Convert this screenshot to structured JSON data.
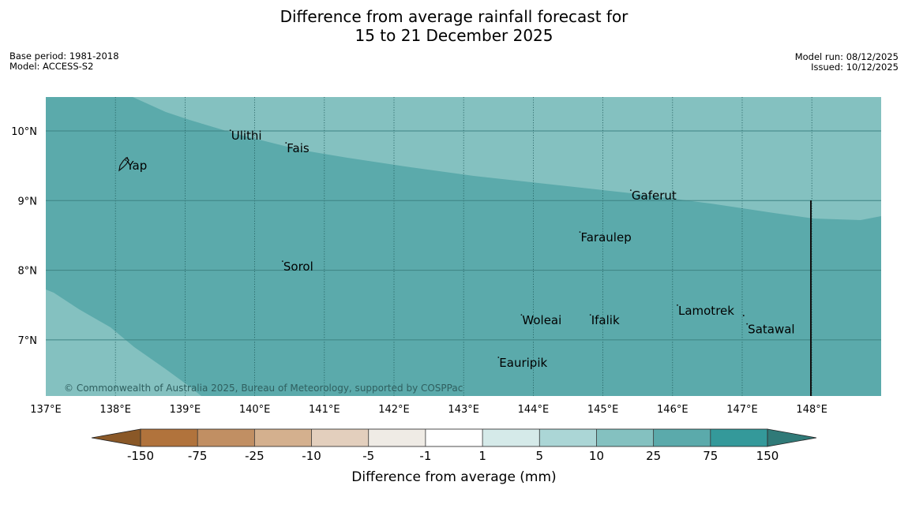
{
  "title": {
    "line1": "Difference from average rainfall forecast for",
    "line2": "15 to 21 December 2025"
  },
  "meta_left": {
    "base_period": "Base period: 1981-2018",
    "model": "Model: ACCESS-S2"
  },
  "meta_right": {
    "model_run": "Model run: 08/12/2025",
    "issued": "Issued: 10/12/2025"
  },
  "map": {
    "lon_range": [
      137,
      149
    ],
    "lat_range": [
      6.2,
      10.5
    ],
    "lon_labels": [
      "137°E",
      "138°E",
      "139°E",
      "140°E",
      "141°E",
      "142°E",
      "143°E",
      "144°E",
      "145°E",
      "146°E",
      "147°E",
      "148°E"
    ],
    "lat_labels": [
      "10°N",
      "9°N",
      "8°N",
      "7°N"
    ],
    "category_colors": {
      "5_to_10": "#abd6d6",
      "10_to_25": "#84c1c0",
      "25_to_75": "#5baaab"
    },
    "places": [
      {
        "name": "Yap",
        "lon": 138.15,
        "lat": 9.5
      },
      {
        "name": "Ulithi",
        "lon": 139.65,
        "lat": 9.93
      },
      {
        "name": "Fais",
        "lon": 140.45,
        "lat": 9.75
      },
      {
        "name": "Gaferut",
        "lon": 145.4,
        "lat": 9.07
      },
      {
        "name": "Faraulep",
        "lon": 144.67,
        "lat": 8.47
      },
      {
        "name": "Sorol",
        "lon": 140.4,
        "lat": 8.05
      },
      {
        "name": "Woleai",
        "lon": 143.83,
        "lat": 7.28
      },
      {
        "name": "Ifalik",
        "lon": 144.82,
        "lat": 7.28
      },
      {
        "name": "Lamotrek",
        "lon": 146.07,
        "lat": 7.42
      },
      {
        "name": "Satawal",
        "lon": 147.07,
        "lat": 7.15
      },
      {
        "name": "Eauripik",
        "lon": 143.5,
        "lat": 6.67
      }
    ],
    "copyright": "© Commonwealth of Australia 2025, Bureau of Meteorology, supported by COSPPac"
  },
  "colorbar": {
    "tick_labels": [
      "-150",
      "-75",
      "-25",
      "-10",
      "-5",
      "-1",
      "1",
      "5",
      "10",
      "25",
      "75",
      "150"
    ],
    "colors": [
      "#b1733c",
      "#c18f63",
      "#d4b08e",
      "#e3cfbd",
      "#efebe5",
      "#ffffff",
      "#d5eae9",
      "#abd6d6",
      "#84c1c0",
      "#5baaab",
      "#34999a"
    ],
    "under_color": "#8a5827",
    "over_color": "#307a78",
    "label": "Difference from average (mm)"
  }
}
